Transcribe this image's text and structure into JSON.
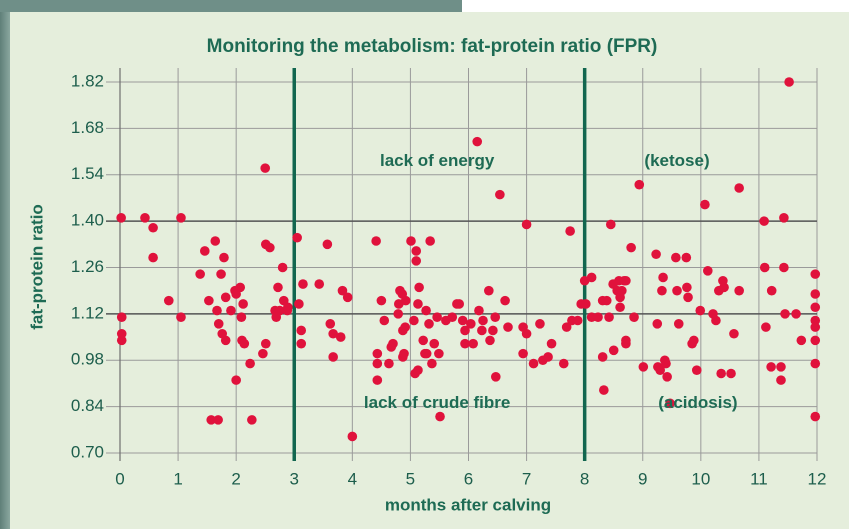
{
  "chart_data": {
    "type": "scatter",
    "title": "Monitoring the metabolism: fat-protein ratio (FPR)",
    "xlabel": "months after calving",
    "ylabel": "fat-protein ratio",
    "xlim": [
      0,
      12
    ],
    "ylim": [
      0.7,
      1.82
    ],
    "xticks": [
      0,
      1,
      2,
      3,
      4,
      5,
      6,
      7,
      8,
      9,
      10,
      11,
      12
    ],
    "yticks": [
      {
        "value": 0.7,
        "label": "0.70"
      },
      {
        "value": 0.84,
        "label": "0.84"
      },
      {
        "value": 0.98,
        "label": "0.98"
      },
      {
        "value": 1.12,
        "label": "1.12"
      },
      {
        "value": 1.26,
        "label": "1.26"
      },
      {
        "value": 1.4,
        "label": "1.40"
      },
      {
        "value": 1.54,
        "label": "1.54"
      },
      {
        "value": 1.68,
        "label": "1.68"
      },
      {
        "value": 1.82,
        "label": "1.82"
      }
    ],
    "grid": true,
    "vlines": [
      3,
      8
    ],
    "hlines": [
      1.4,
      1.12
    ],
    "annotations": [
      {
        "text": "lack of energy",
        "x": 5.46,
        "y": 1.58
      },
      {
        "text": "(ketose)",
        "x": 9.59,
        "y": 1.58
      },
      {
        "text": "lack of crude fibre",
        "x": 5.46,
        "y": 0.85
      },
      {
        "text": "(acidosis)",
        "x": 9.95,
        "y": 0.85
      }
    ],
    "series": [
      {
        "color": "#e0123c",
        "x": [
          0.02,
          0.03,
          0.03,
          0.03,
          0.43,
          0.57,
          0.57,
          1.05,
          1.05,
          0.84,
          1.38,
          1.46,
          1.53,
          1.64,
          1.67,
          1.7,
          1.74,
          1.76,
          1.79,
          1.82,
          1.57,
          1.69,
          1.82,
          1.91,
          1.98,
          2.0,
          2.0,
          2.07,
          2.09,
          2.1,
          2.14,
          2.12,
          2.24,
          2.27,
          2.46,
          2.51,
          2.5,
          2.51,
          2.58,
          2.67,
          2.69,
          2.72,
          2.75,
          2.8,
          2.82,
          2.88,
          2.89,
          3.05,
          3.08,
          3.12,
          3.12,
          3.15,
          3.43,
          3.57,
          3.62,
          3.67,
          3.67,
          3.8,
          3.83,
          3.92,
          4.0,
          4.41,
          4.43,
          4.43,
          4.43,
          4.5,
          4.55,
          4.63,
          4.67,
          4.7,
          4.79,
          4.8,
          4.82,
          4.86,
          4.87,
          4.87,
          4.91,
          4.89,
          4.92,
          5.01,
          5.06,
          5.08,
          5.1,
          5.1,
          5.13,
          5.13,
          5.15,
          5.22,
          5.25,
          5.27,
          5.28,
          5.32,
          5.34,
          5.37,
          5.41,
          5.46,
          5.49,
          5.51,
          5.61,
          5.72,
          5.8,
          5.84,
          5.9,
          5.94,
          5.94,
          6.04,
          6.08,
          6.15,
          6.18,
          6.23,
          6.25,
          6.35,
          6.37,
          6.42,
          6.46,
          6.47,
          6.54,
          6.63,
          6.68,
          7.0,
          6.94,
          6.94,
          7.0,
          7.12,
          7.23,
          7.28,
          7.37,
          7.43,
          7.75,
          7.64,
          7.69,
          7.78,
          7.88,
          7.94,
          8.0,
          8.02,
          8.12,
          8.12,
          8.23,
          8.31,
          8.31,
          8.33,
          8.38,
          8.42,
          8.45,
          8.49,
          8.5,
          8.56,
          8.59,
          8.61,
          8.61,
          8.64,
          8.68,
          8.71,
          8.71,
          8.71,
          8.8,
          8.85,
          8.94,
          9.01,
          9.23,
          9.25,
          9.26,
          9.3,
          9.33,
          9.35,
          9.38,
          9.4,
          9.42,
          9.47,
          9.57,
          9.59,
          9.62,
          9.75,
          9.76,
          9.78,
          9.85,
          9.88,
          9.93,
          9.99,
          10.07,
          10.12,
          10.21,
          10.26,
          10.31,
          10.35,
          10.38,
          10.4,
          10.52,
          10.57,
          10.66,
          10.66,
          11.09,
          11.1,
          11.12,
          11.21,
          11.22,
          11.38,
          11.38,
          11.43,
          11.43,
          11.45,
          11.52,
          11.64,
          11.73,
          11.97,
          11.97,
          11.97,
          11.97,
          11.97,
          11.97,
          11.97,
          11.97
        ],
        "values": [
          1.41,
          1.11,
          1.06,
          1.04,
          1.41,
          1.38,
          1.29,
          1.41,
          1.11,
          1.16,
          1.24,
          1.31,
          1.16,
          1.34,
          1.13,
          1.09,
          1.24,
          1.06,
          1.29,
          1.17,
          0.8,
          0.8,
          1.04,
          1.13,
          1.19,
          1.18,
          0.92,
          1.2,
          1.11,
          1.04,
          1.03,
          1.15,
          0.97,
          0.8,
          1.0,
          1.03,
          1.56,
          1.33,
          1.32,
          1.13,
          1.11,
          1.2,
          1.13,
          1.26,
          1.16,
          1.13,
          1.14,
          1.35,
          1.15,
          1.07,
          1.03,
          1.21,
          1.21,
          1.33,
          1.09,
          0.99,
          1.06,
          1.05,
          1.19,
          1.17,
          0.75,
          1.34,
          1.0,
          0.97,
          0.92,
          1.16,
          1.1,
          0.97,
          1.02,
          1.03,
          1.12,
          1.15,
          1.19,
          1.18,
          0.99,
          1.07,
          1.08,
          1.0,
          1.16,
          1.34,
          1.1,
          0.94,
          1.31,
          1.28,
          1.15,
          0.95,
          1.2,
          1.04,
          1.0,
          1.13,
          1.0,
          1.09,
          1.34,
          0.97,
          1.03,
          1.11,
          1.0,
          0.81,
          1.1,
          1.11,
          1.15,
          1.15,
          1.1,
          1.03,
          1.07,
          1.09,
          1.03,
          1.64,
          1.13,
          1.07,
          1.1,
          1.19,
          1.04,
          1.07,
          1.11,
          0.93,
          1.48,
          1.16,
          1.08,
          1.39,
          1.08,
          1.0,
          1.06,
          0.97,
          1.09,
          0.98,
          0.99,
          1.03,
          1.37,
          0.97,
          1.08,
          1.1,
          1.1,
          1.15,
          1.22,
          1.15,
          1.23,
          1.11,
          1.11,
          1.16,
          0.99,
          0.89,
          1.16,
          1.11,
          1.39,
          1.21,
          1.01,
          1.19,
          1.22,
          1.14,
          1.17,
          1.19,
          1.22,
          1.03,
          1.22,
          1.04,
          1.32,
          1.11,
          1.51,
          0.96,
          1.3,
          1.09,
          0.96,
          0.95,
          1.19,
          1.23,
          0.98,
          0.97,
          0.93,
          0.85,
          1.29,
          1.19,
          1.09,
          1.29,
          1.2,
          1.17,
          1.03,
          1.04,
          0.95,
          1.13,
          1.45,
          1.25,
          1.12,
          1.1,
          1.19,
          0.94,
          1.22,
          1.2,
          0.94,
          1.06,
          1.19,
          1.5,
          1.4,
          1.26,
          1.08,
          0.96,
          1.19,
          0.96,
          0.92,
          1.26,
          1.41,
          1.12,
          1.82,
          1.12,
          1.04,
          1.24,
          1.18,
          1.14,
          1.1,
          1.08,
          1.04,
          0.97,
          0.81
        ]
      }
    ]
  }
}
